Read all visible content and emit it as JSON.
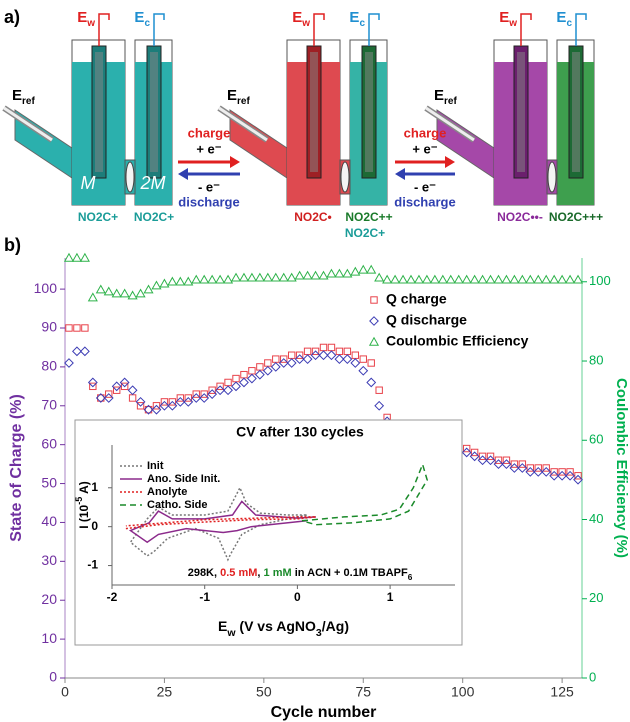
{
  "panel_a": {
    "label": "a)",
    "electrodes": {
      "working": {
        "main": "E",
        "sub": "w"
      },
      "counter": {
        "main": "E",
        "sub": "c"
      },
      "reference": {
        "main": "E",
        "sub": "ref"
      }
    },
    "cells": [
      {
        "left_label": "M",
        "right_label": "2M",
        "left_species": [
          "NO2C+"
        ],
        "right_species": [
          "NO2C+"
        ]
      },
      {
        "left_species": [
          "NO2C•"
        ],
        "right_species": [
          "NO2C++",
          "NO2C+"
        ]
      },
      {
        "left_species": [
          "NO2C••-"
        ],
        "right_species": [
          "NO2C+++"
        ]
      }
    ],
    "arrows": [
      {
        "forward": "charge",
        "forward_electron": "+ e⁻",
        "backward_electron": "- e⁻",
        "backward": "discharge"
      },
      {
        "forward": "charge",
        "forward_electron": "+ e⁻",
        "backward_electron": "- e⁻",
        "backward": "discharge"
      }
    ]
  },
  "chart_data": [
    {
      "type": "scatter",
      "panel_label": "b)",
      "xlabel": "Cycle number",
      "ylabel": "State of Charge (%)",
      "y2label": "Coulombic Efficiency (%)",
      "ylabel_color": "#7030a0",
      "y2label_color": "#00b050",
      "x": [
        1,
        3,
        5,
        7,
        9,
        11,
        13,
        15,
        17,
        19,
        21,
        23,
        25,
        27,
        29,
        31,
        33,
        35,
        37,
        39,
        41,
        43,
        45,
        47,
        49,
        51,
        53,
        55,
        57,
        59,
        61,
        63,
        65,
        67,
        69,
        71,
        73,
        75,
        77,
        79,
        81,
        83,
        85,
        87,
        89,
        91,
        93,
        95,
        97,
        99,
        101,
        103,
        105,
        107,
        109,
        111,
        113,
        115,
        117,
        119,
        121,
        123,
        125,
        127,
        129
      ],
      "xlim": [
        0,
        130
      ],
      "xticks": [
        0,
        25,
        50,
        75,
        100,
        125
      ],
      "ylim": [
        0,
        108
      ],
      "yticks": [
        0,
        10,
        20,
        30,
        40,
        50,
        60,
        70,
        80,
        90,
        100
      ],
      "y2lim": [
        0,
        106
      ],
      "y2ticks": [
        0,
        20,
        40,
        60,
        80,
        100
      ],
      "series": [
        {
          "name": "Q charge",
          "color": "#e8424a",
          "marker": "square",
          "values": [
            90,
            90,
            90,
            75,
            72,
            73,
            74,
            75,
            72,
            70,
            69,
            70,
            71,
            71,
            72,
            72,
            73,
            73,
            74,
            75,
            76,
            77,
            78,
            79,
            80,
            81,
            82,
            82,
            83,
            83,
            84,
            84,
            85,
            85,
            84,
            84,
            83,
            82,
            81,
            74,
            67,
            65,
            64,
            63,
            62,
            62,
            61,
            60,
            60,
            59,
            59,
            58,
            57,
            57,
            56,
            56,
            55,
            55,
            54,
            54,
            54,
            53,
            53,
            53,
            52
          ]
        },
        {
          "name": "Q discharge",
          "color": "#3c3cb4",
          "marker": "diamond",
          "values": [
            81,
            84,
            84,
            76,
            72,
            72,
            75,
            76,
            74,
            71,
            69,
            69,
            70,
            70,
            71,
            71,
            72,
            72,
            73,
            74,
            74,
            75,
            76,
            77,
            78,
            79,
            80,
            81,
            81,
            82,
            82,
            83,
            83,
            83,
            82,
            82,
            81,
            79,
            76,
            70,
            66,
            64,
            63,
            62,
            61,
            60,
            60,
            59,
            59,
            58,
            58,
            57,
            56,
            56,
            55,
            55,
            54,
            54,
            53,
            53,
            53,
            52,
            52,
            52,
            51
          ]
        },
        {
          "name": "Coulombic Efficiency",
          "color": "#2eb24a",
          "marker": "triangle",
          "axis": "y2",
          "values": [
            106,
            106,
            106,
            96,
            98,
            97.5,
            97,
            97,
            96.5,
            97,
            98,
            99,
            99.5,
            100,
            100,
            100,
            100.5,
            100.5,
            100.5,
            100.5,
            100.5,
            101,
            101,
            101,
            101,
            101,
            101,
            101,
            101,
            101.5,
            101.5,
            101.5,
            101.5,
            102,
            102,
            102,
            102.5,
            103,
            103,
            101,
            100.5,
            100.5,
            100.5,
            100.5,
            100.5,
            100.5,
            100.5,
            100.5,
            100.5,
            100.5,
            100.5,
            100.5,
            100.5,
            100.5,
            100.5,
            100.5,
            100.5,
            100.5,
            100.5,
            100.5,
            100.5,
            100.5,
            100.5,
            100.5,
            100.5
          ]
        }
      ]
    },
    {
      "type": "line",
      "title": "CV after 130 cycles",
      "xlabel": [
        {
          "text": "E"
        },
        {
          "text": "w",
          "sub": true
        },
        {
          "text": " (V vs AgNO"
        },
        {
          "text": "3",
          "sub": true
        },
        {
          "text": "/Ag)"
        }
      ],
      "ylabel": [
        {
          "text": "I (10"
        },
        {
          "text": "-5",
          "sup": true
        },
        {
          "text": " A)"
        }
      ],
      "annotation": [
        {
          "text": "298K, "
        },
        {
          "text": "0.5 mM",
          "color": "#e02020"
        },
        {
          "text": ", "
        },
        {
          "text": "1 mM",
          "color": "#1a8a2a"
        },
        {
          "text": " in ACN + 0.1M TBAPF"
        },
        {
          "text": "6",
          "sub": true
        }
      ],
      "xlim": [
        -2,
        1.7
      ],
      "xticks": [
        -2,
        -1,
        0,
        1
      ],
      "ylim": [
        -1.5,
        2.1
      ],
      "yticks": [
        -1,
        0,
        1
      ],
      "series": [
        {
          "name": "Init",
          "color": "#777777",
          "dash": "dotted",
          "x": [
            0.1,
            -0.4,
            -0.6,
            -0.72,
            -0.75,
            -0.85,
            -1.1,
            -1.4,
            -1.55,
            -1.62,
            -1.8,
            -1.62,
            -1.5,
            -1.35,
            -1.0,
            -0.75,
            -0.62,
            -0.55,
            -0.4,
            -0.1,
            0.1
          ],
          "values": [
            0.3,
            0.05,
            -0.2,
            -0.7,
            -0.85,
            -0.3,
            -0.05,
            -0.3,
            -0.65,
            -0.75,
            -0.4,
            0.2,
            0.5,
            0.3,
            0.3,
            0.4,
            1.0,
            0.6,
            0.35,
            0.3,
            0.3
          ]
        },
        {
          "name": "Ano. Side Init.",
          "color": "#8b2a8b",
          "dash": "solid",
          "x": [
            0.1,
            -0.5,
            -0.65,
            -0.8,
            -1.2,
            -1.5,
            -1.62,
            -1.8,
            -1.6,
            -1.5,
            -1.35,
            -1.0,
            -0.7,
            -0.6,
            -0.45,
            0,
            0.2
          ],
          "values": [
            0.15,
            0.0,
            -0.1,
            -0.15,
            -0.05,
            -0.2,
            -0.4,
            -0.1,
            0.1,
            0.4,
            0.2,
            0.2,
            0.3,
            0.65,
            0.3,
            0.22,
            0.25
          ]
        },
        {
          "name": "Anolyte",
          "color": "#e02020",
          "dash": "dotted",
          "x": [
            -1.85,
            -1.5,
            -1,
            -0.5,
            0,
            0.2,
            0,
            -1,
            -1.85
          ],
          "values": [
            -0.05,
            0.05,
            0.12,
            0.18,
            0.2,
            0.25,
            0.25,
            0.18,
            0.02
          ]
        },
        {
          "name": "Catho. Side",
          "color": "#1a8a2a",
          "dash": "dashed",
          "x": [
            0.05,
            0.5,
            0.9,
            1.1,
            1.25,
            1.35,
            1.4,
            1.2,
            1.0,
            0.6,
            0.2,
            0.05
          ],
          "values": [
            0.15,
            0.25,
            0.3,
            0.45,
            1.0,
            1.6,
            1.2,
            0.4,
            0.2,
            0.1,
            0.05,
            0.15
          ]
        }
      ]
    }
  ]
}
